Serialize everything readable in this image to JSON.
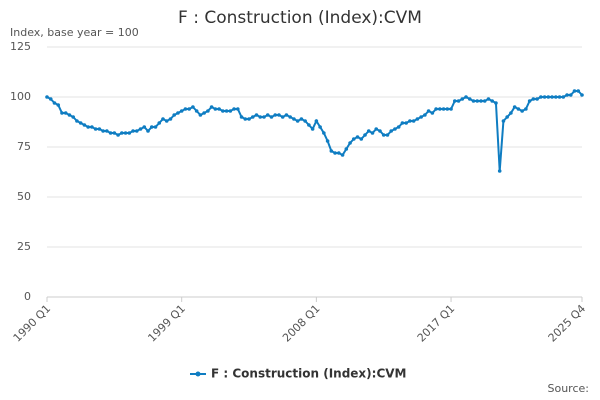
{
  "chart_data": {
    "type": "line",
    "title": "F : Construction (Index):CVM",
    "y_label": "Index, base year = 100",
    "source": "Source:",
    "categories": [
      "1990 Q1",
      null,
      null,
      null,
      null,
      null,
      null,
      null,
      null,
      null,
      null,
      null,
      null,
      null,
      null,
      null,
      null,
      null,
      null,
      null,
      null,
      null,
      null,
      null,
      null,
      null,
      null,
      null,
      null,
      null,
      null,
      null,
      null,
      null,
      null,
      null,
      "1999 Q1",
      null,
      null,
      null,
      null,
      null,
      null,
      null,
      null,
      null,
      null,
      null,
      null,
      null,
      null,
      null,
      null,
      null,
      null,
      null,
      null,
      null,
      null,
      null,
      null,
      null,
      null,
      null,
      null,
      null,
      null,
      null,
      null,
      null,
      null,
      null,
      "2008 Q1",
      null,
      null,
      null,
      null,
      null,
      null,
      null,
      null,
      null,
      null,
      null,
      null,
      null,
      null,
      null,
      null,
      null,
      null,
      null,
      null,
      null,
      null,
      null,
      null,
      null,
      null,
      null,
      null,
      null,
      null,
      null,
      null,
      null,
      null,
      null,
      "2017 Q1",
      null,
      null,
      null,
      null,
      null,
      null,
      null,
      null,
      null,
      null,
      null,
      null,
      null,
      null,
      null,
      null,
      null,
      null,
      null,
      null,
      null,
      null,
      null,
      null,
      null,
      null,
      null,
      null,
      null,
      null,
      null,
      null,
      null,
      null,
      "2025 Q4"
    ],
    "series": [
      {
        "name": "F : Construction (Index):CVM",
        "color": "#0f7dc2",
        "values": [
          100,
          99,
          97,
          96,
          92,
          92,
          91,
          90,
          88,
          87,
          86,
          85,
          85,
          84,
          84,
          83,
          83,
          82,
          82,
          81,
          82,
          82,
          82,
          83,
          83,
          84,
          85,
          83,
          85,
          85,
          87,
          89,
          88,
          89,
          91,
          92,
          93,
          94,
          94,
          95,
          93,
          91,
          92,
          93,
          95,
          94,
          94,
          93,
          93,
          93,
          94,
          94,
          90,
          89,
          89,
          90,
          91,
          90,
          90,
          91,
          90,
          91,
          91,
          90,
          91,
          90,
          89,
          88,
          89,
          88,
          86,
          84,
          88,
          85,
          82,
          78,
          73,
          72,
          72,
          71,
          74,
          77,
          79,
          80,
          79,
          81,
          83,
          82,
          84,
          83,
          81,
          81,
          83,
          84,
          85,
          87,
          87,
          88,
          88,
          89,
          90,
          91,
          93,
          92,
          94,
          94,
          94,
          94,
          94,
          98,
          98,
          99,
          100,
          99,
          98,
          98,
          98,
          98,
          99,
          98,
          97,
          63,
          88,
          90,
          92,
          95,
          94,
          93,
          94,
          98,
          99,
          99,
          100,
          100,
          100,
          100,
          100,
          100,
          100,
          101,
          101,
          103,
          103,
          101
        ]
      }
    ],
    "ylim": [
      0,
      125
    ],
    "yticks": [
      0,
      25,
      50,
      75,
      100,
      125
    ],
    "grid": true,
    "legend": "bottom"
  }
}
